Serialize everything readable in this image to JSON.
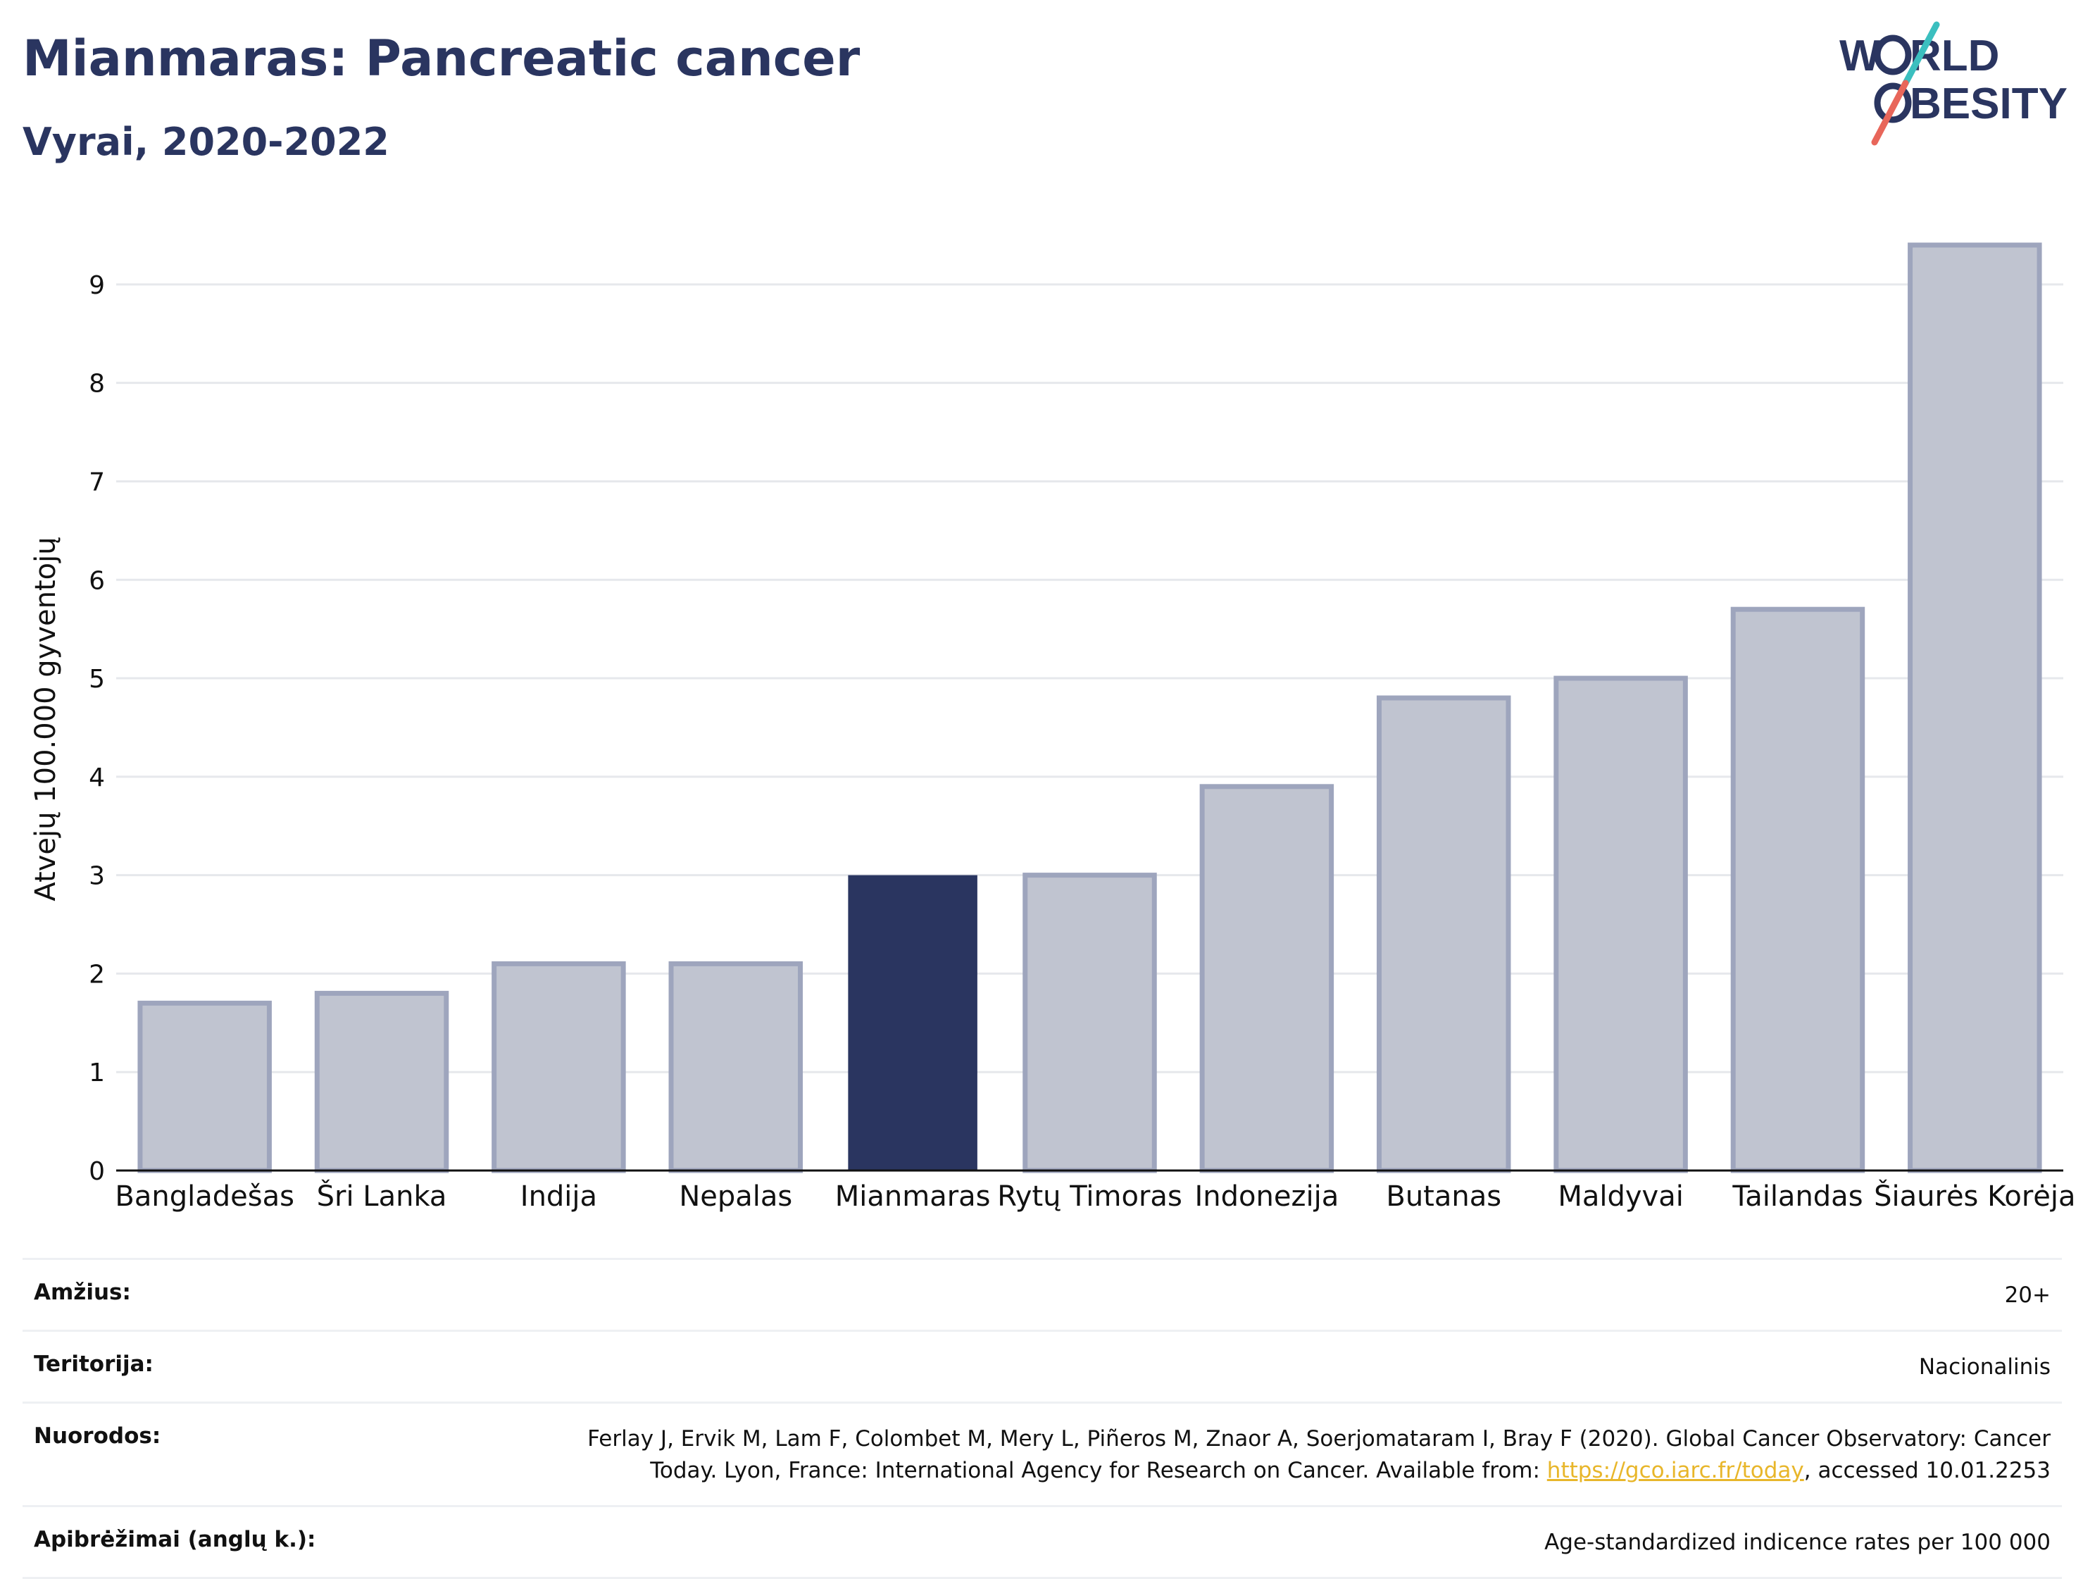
{
  "header": {
    "title": "Mianmaras: Pancreatic cancer",
    "subtitle": "Vyrai, 2020-2022"
  },
  "logo": {
    "line1_a": "W",
    "line1_b": "RLD",
    "line2_a": "BESITY",
    "colors": {
      "text": "#2a3560",
      "slash_top": "#3bbfbf",
      "slash_bottom": "#e8665a"
    }
  },
  "chart_data": {
    "type": "bar",
    "categories": [
      "Bangladešas",
      "Šri Lanka",
      "Indija",
      "Nepalas",
      "Mianmaras",
      "Rytų Timoras",
      "Indonezija",
      "Butanas",
      "Maldyvai",
      "Tailandas",
      "Šiaurės Korėja"
    ],
    "values": [
      1.7,
      1.8,
      2.1,
      2.1,
      3.0,
      3.0,
      3.9,
      4.8,
      5.0,
      5.7,
      9.4
    ],
    "highlight": "Mianmaras",
    "ylabel": "Atvejų 100.000 gyventojų",
    "ylim": [
      0,
      9.6
    ],
    "yticks": [
      0,
      1,
      2,
      3,
      4,
      5,
      6,
      7,
      8,
      9
    ],
    "grid": true,
    "colors": {
      "bar": "#c0c4d0",
      "bar_border": "#9ea5bd",
      "highlight": "#2a3560",
      "grid": "#e6e8ec",
      "axis": "#111111"
    }
  },
  "details": {
    "age_label": "Amžius:",
    "age_value": "20+",
    "territory_label": "Teritorija:",
    "territory_value": "Nacionalinis",
    "references_label": "Nuorodos:",
    "references_line1": "Ferlay J, Ervik M, Lam F, Colombet M, Mery L, Piñeros M, Znaor A, Soerjomataram I, Bray F (2020). Global Cancer Observatory: Cancer",
    "references_line2_pre": "Today. Lyon, France: International Agency for Research on Cancer. Available from: ",
    "references_link": "https://gco.iarc.fr/today",
    "references_line2_post": ", accessed 10.01.2253",
    "definitions_label": "Apibrėžimai (anglų k.):",
    "definitions_value": "Age-standardized indicence rates per 100 000"
  }
}
